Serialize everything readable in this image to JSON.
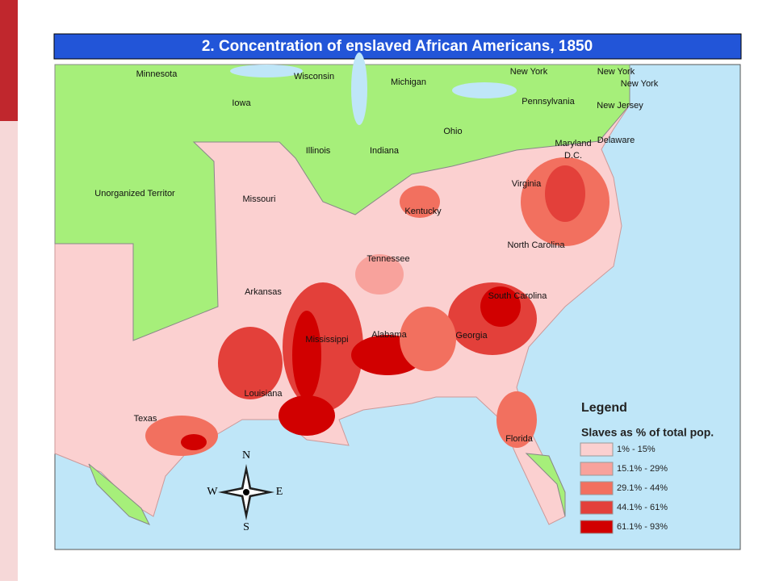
{
  "title": "2.  Concentration of enslaved African Americans, 1850",
  "labels": [
    "Minnesota",
    "Wisconsin",
    "Michigan",
    "New York",
    "New York",
    "New York",
    "Iowa",
    "Pennsylvania",
    "New Jersey",
    "Ohio",
    "Illinois",
    "Indiana",
    "Maryland",
    "Delaware",
    "D.C.",
    "Unorganized Territor",
    "Missouri",
    "Virginia",
    "Kentucky",
    "North Carolina",
    "Tennessee",
    "Arkansas",
    "South Carolina",
    "Mississippi",
    "Alabama",
    "Georgia",
    "Louisiana",
    "Texas",
    "Florida"
  ],
  "legend": {
    "title": "Legend",
    "subtitle": "Slaves as % of total pop.",
    "items": [
      {
        "label": "1% - 15%",
        "color": "#fbd0d0"
      },
      {
        "label": "15.1% - 29%",
        "color": "#f8a29c"
      },
      {
        "label": "29.1% - 44%",
        "color": "#f2705f"
      },
      {
        "label": "44.1% - 61%",
        "color": "#e3403a"
      },
      {
        "label": "61.1% - 93%",
        "color": "#d10000"
      }
    ]
  },
  "compass": {
    "n": "N",
    "s": "S",
    "e": "E",
    "w": "W"
  }
}
